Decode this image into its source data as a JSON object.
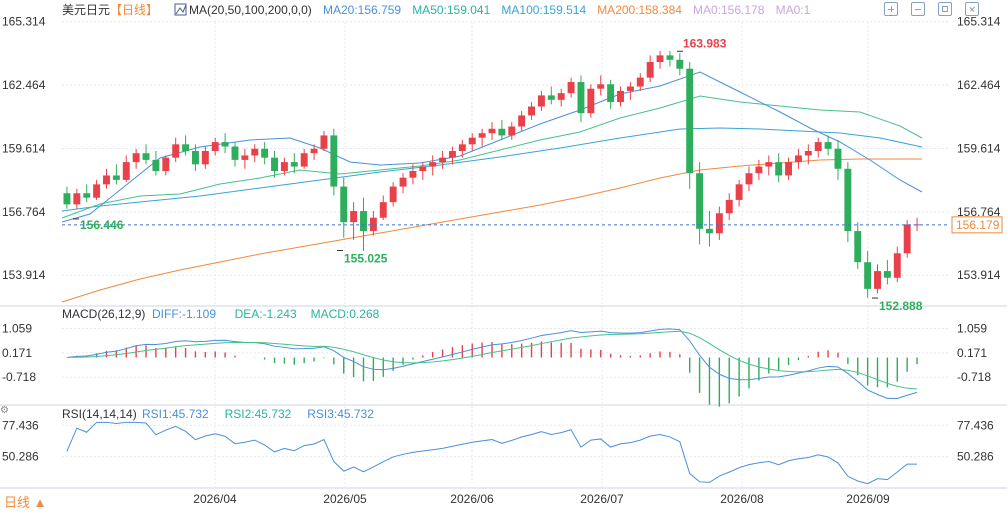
{
  "header": {
    "symbol": "美元日元",
    "period_tag": "【日线】",
    "ma_label": "MA(20,50,100,200,0,0)",
    "ma_values": [
      {
        "text": "MA20:156.759",
        "color": "#4a90d9"
      },
      {
        "text": "MA50:159.041",
        "color": "#2bb3a0"
      },
      {
        "text": "MA100:159.514",
        "color": "#3aa3d6"
      },
      {
        "text": "MA200:158.384",
        "color": "#f08a3c"
      },
      {
        "text": "MA0:156.178",
        "color": "#c9a6e0"
      },
      {
        "text": "MA0:1",
        "color": "#c9a6e0"
      }
    ]
  },
  "toolbar": {
    "buttons": [
      "zoom-in",
      "zoom-out",
      "fullscreen",
      "close"
    ]
  },
  "colors": {
    "up": "#e8414a",
    "down": "#2eae5c",
    "ma20": "#4a90d9",
    "ma50": "#46c08a",
    "ma100": "#3aa3d6",
    "ma200": "#f08a3c",
    "price_line": "#3a6fd8",
    "grid": "#e3e8f0",
    "axis_text": "#333333"
  },
  "chart_data": {
    "type": "candlestick",
    "main": {
      "y_ticks": [
        "165.314",
        "162.464",
        "159.614",
        "156.764",
        "153.914"
      ],
      "ylim": [
        152.8,
        165.3
      ],
      "current_price": "156.179",
      "annotations": [
        {
          "text": "163.983",
          "value": 163.983,
          "kind": "high"
        },
        {
          "text": "155.025",
          "value": 155.025,
          "kind": "low"
        },
        {
          "text": "152.888",
          "value": 152.888,
          "kind": "low"
        },
        {
          "text": "156.446",
          "value": 156.446,
          "kind": "low"
        }
      ]
    },
    "macd": {
      "label": "MACD(26,12,9)",
      "values": [
        {
          "text": "DIFF:-1.109",
          "color": "#4a90d9"
        },
        {
          "text": "DEA:-1.243",
          "color": "#2bb3a0"
        },
        {
          "text": "MACD:0.268",
          "color": "#2bb3a0"
        }
      ],
      "y_ticks": [
        "1.059",
        "0.171",
        "-0.718"
      ]
    },
    "rsi": {
      "label": "RSI(14,14,14)",
      "values": [
        {
          "text": "RSI1:45.732",
          "color": "#4a90d9"
        },
        {
          "text": "RSI2:45.732",
          "color": "#2bb3a0"
        },
        {
          "text": "RSI3:45.732",
          "color": "#4a90d9"
        }
      ],
      "y_ticks": [
        "77.436",
        "50.286"
      ]
    },
    "x_labels": [
      "2026/04",
      "2026/05",
      "2026/06",
      "2026/07",
      "2026/08",
      "2026/09"
    ],
    "period_button": "日线 ▲",
    "candles": [
      [
        157.6,
        157.9,
        156.9,
        157.1
      ],
      [
        157.1,
        157.8,
        156.9,
        157.6
      ],
      [
        157.6,
        158.0,
        157.2,
        157.4
      ],
      [
        157.4,
        158.2,
        157.3,
        158.0
      ],
      [
        158.0,
        158.7,
        157.8,
        158.4
      ],
      [
        158.4,
        158.9,
        158.0,
        158.2
      ],
      [
        158.2,
        159.3,
        158.1,
        159.0
      ],
      [
        159.0,
        159.6,
        158.7,
        159.4
      ],
      [
        159.4,
        159.8,
        158.9,
        159.1
      ],
      [
        159.1,
        159.5,
        158.4,
        158.6
      ],
      [
        158.6,
        159.3,
        158.4,
        159.2
      ],
      [
        159.2,
        160.1,
        159.0,
        159.8
      ],
      [
        159.8,
        160.2,
        159.3,
        159.5
      ],
      [
        159.5,
        159.8,
        158.6,
        158.9
      ],
      [
        158.9,
        159.7,
        158.7,
        159.5
      ],
      [
        159.5,
        160.1,
        159.3,
        159.9
      ],
      [
        159.9,
        160.3,
        159.4,
        159.7
      ],
      [
        159.7,
        159.9,
        158.8,
        159.1
      ],
      [
        159.1,
        159.6,
        158.7,
        159.3
      ],
      [
        159.3,
        159.8,
        159.0,
        159.6
      ],
      [
        159.6,
        159.9,
        158.9,
        159.2
      ],
      [
        159.2,
        159.5,
        158.3,
        158.6
      ],
      [
        158.6,
        159.2,
        158.4,
        159.0
      ],
      [
        159.0,
        159.4,
        158.5,
        158.8
      ],
      [
        158.8,
        159.6,
        158.7,
        159.4
      ],
      [
        159.4,
        159.8,
        159.1,
        159.6
      ],
      [
        159.6,
        160.4,
        159.5,
        160.2
      ],
      [
        160.2,
        160.5,
        157.5,
        157.9
      ],
      [
        157.9,
        158.3,
        155.6,
        156.3
      ],
      [
        156.3,
        157.2,
        155.5,
        156.8
      ],
      [
        156.8,
        157.4,
        155.0,
        155.9
      ],
      [
        155.9,
        156.8,
        155.7,
        156.5
      ],
      [
        156.5,
        157.5,
        156.4,
        157.2
      ],
      [
        157.2,
        158.1,
        157.0,
        157.9
      ],
      [
        157.9,
        158.5,
        157.6,
        158.3
      ],
      [
        158.3,
        158.9,
        158.0,
        158.6
      ],
      [
        158.6,
        159.0,
        158.2,
        158.8
      ],
      [
        158.8,
        159.3,
        158.4,
        159.0
      ],
      [
        159.0,
        159.5,
        158.7,
        159.2
      ],
      [
        159.2,
        159.7,
        158.9,
        159.5
      ],
      [
        159.5,
        160.0,
        159.2,
        159.8
      ],
      [
        159.8,
        160.3,
        159.5,
        160.1
      ],
      [
        160.1,
        160.5,
        159.7,
        160.3
      ],
      [
        160.3,
        160.8,
        160.0,
        160.5
      ],
      [
        160.5,
        160.9,
        160.0,
        160.2
      ],
      [
        160.2,
        160.8,
        160.0,
        160.6
      ],
      [
        160.6,
        161.3,
        160.4,
        161.1
      ],
      [
        161.1,
        161.7,
        160.9,
        161.5
      ],
      [
        161.5,
        162.2,
        161.3,
        162.0
      ],
      [
        162.0,
        162.4,
        161.6,
        161.8
      ],
      [
        161.8,
        162.3,
        161.5,
        162.1
      ],
      [
        162.1,
        162.8,
        161.9,
        162.6
      ],
      [
        162.6,
        162.9,
        160.8,
        161.2
      ],
      [
        161.2,
        162.5,
        161.0,
        162.3
      ],
      [
        162.3,
        162.9,
        162.0,
        162.5
      ],
      [
        162.5,
        162.7,
        161.4,
        161.7
      ],
      [
        161.7,
        162.4,
        161.5,
        162.2
      ],
      [
        162.2,
        162.6,
        161.8,
        162.4
      ],
      [
        162.4,
        163.0,
        162.2,
        162.8
      ],
      [
        162.8,
        163.8,
        162.6,
        163.5
      ],
      [
        163.5,
        164.0,
        163.2,
        163.8
      ],
      [
        163.8,
        164.0,
        163.3,
        163.6
      ],
      [
        163.6,
        163.9,
        162.9,
        163.2
      ],
      [
        163.2,
        163.5,
        157.8,
        158.5
      ],
      [
        158.5,
        159.0,
        155.3,
        156.0
      ],
      [
        156.0,
        156.8,
        155.2,
        155.8
      ],
      [
        155.8,
        157.0,
        155.5,
        156.7
      ],
      [
        156.7,
        157.6,
        156.4,
        157.3
      ],
      [
        157.3,
        158.2,
        157.0,
        158.0
      ],
      [
        158.0,
        158.8,
        157.7,
        158.5
      ],
      [
        158.5,
        159.1,
        158.2,
        158.8
      ],
      [
        158.8,
        159.3,
        158.4,
        159.0
      ],
      [
        159.0,
        159.4,
        158.1,
        158.4
      ],
      [
        158.4,
        159.2,
        158.2,
        159.0
      ],
      [
        159.0,
        159.6,
        158.7,
        159.3
      ],
      [
        159.3,
        159.8,
        158.9,
        159.5
      ],
      [
        159.5,
        160.1,
        159.2,
        159.9
      ],
      [
        159.9,
        160.2,
        159.3,
        159.6
      ],
      [
        159.6,
        160.0,
        158.2,
        158.7
      ],
      [
        158.7,
        159.0,
        155.4,
        155.9
      ],
      [
        155.9,
        156.3,
        154.2,
        154.5
      ],
      [
        154.5,
        155.0,
        152.9,
        153.3
      ],
      [
        153.3,
        154.4,
        153.1,
        154.1
      ],
      [
        154.1,
        154.6,
        153.5,
        153.8
      ],
      [
        153.8,
        155.2,
        153.6,
        154.9
      ],
      [
        154.9,
        156.4,
        154.7,
        156.2
      ],
      [
        156.2,
        156.5,
        155.9,
        156.2
      ]
    ],
    "ma20_shape": [
      [
        62,
        222
      ],
      [
        90,
        214
      ],
      [
        120,
        190
      ],
      [
        160,
        158
      ],
      [
        200,
        147
      ],
      [
        250,
        140
      ],
      [
        290,
        138
      ],
      [
        320,
        148
      ],
      [
        350,
        162
      ],
      [
        380,
        165
      ],
      [
        420,
        163
      ],
      [
        460,
        156
      ],
      [
        500,
        140
      ],
      [
        540,
        124
      ],
      [
        580,
        110
      ],
      [
        620,
        94
      ],
      [
        660,
        86
      ],
      [
        700,
        72
      ],
      [
        740,
        92
      ],
      [
        780,
        112
      ],
      [
        810,
        128
      ],
      [
        840,
        142
      ],
      [
        870,
        160
      ],
      [
        900,
        180
      ],
      [
        922,
        192
      ]
    ],
    "ma50_shape": [
      [
        62,
        218
      ],
      [
        100,
        204
      ],
      [
        140,
        196
      ],
      [
        180,
        194
      ],
      [
        220,
        184
      ],
      [
        260,
        178
      ],
      [
        300,
        170
      ],
      [
        340,
        174
      ],
      [
        380,
        170
      ],
      [
        420,
        166
      ],
      [
        460,
        160
      ],
      [
        500,
        150
      ],
      [
        540,
        140
      ],
      [
        580,
        132
      ],
      [
        620,
        118
      ],
      [
        660,
        108
      ],
      [
        700,
        96
      ],
      [
        740,
        102
      ],
      [
        780,
        106
      ],
      [
        820,
        110
      ],
      [
        860,
        112
      ],
      [
        900,
        126
      ],
      [
        922,
        138
      ]
    ],
    "ma100_shape": [
      [
        62,
        211
      ],
      [
        100,
        206
      ],
      [
        140,
        202
      ],
      [
        200,
        196
      ],
      [
        260,
        188
      ],
      [
        320,
        180
      ],
      [
        380,
        172
      ],
      [
        440,
        165
      ],
      [
        500,
        157
      ],
      [
        560,
        148
      ],
      [
        620,
        138
      ],
      [
        680,
        129
      ],
      [
        720,
        128
      ],
      [
        760,
        129
      ],
      [
        800,
        131
      ],
      [
        840,
        133
      ],
      [
        880,
        138
      ],
      [
        922,
        147
      ]
    ],
    "ma200_shape": [
      [
        62,
        302
      ],
      [
        100,
        290
      ],
      [
        140,
        279
      ],
      [
        180,
        270
      ],
      [
        220,
        262
      ],
      [
        260,
        254
      ],
      [
        300,
        247
      ],
      [
        340,
        240
      ],
      [
        380,
        233
      ],
      [
        420,
        226
      ],
      [
        460,
        219
      ],
      [
        500,
        212
      ],
      [
        540,
        205
      ],
      [
        580,
        197
      ],
      [
        620,
        188
      ],
      [
        660,
        178
      ],
      [
        700,
        170
      ],
      [
        740,
        166
      ],
      [
        780,
        163
      ],
      [
        820,
        160
      ],
      [
        860,
        159
      ],
      [
        900,
        159
      ],
      [
        922,
        159
      ]
    ]
  }
}
